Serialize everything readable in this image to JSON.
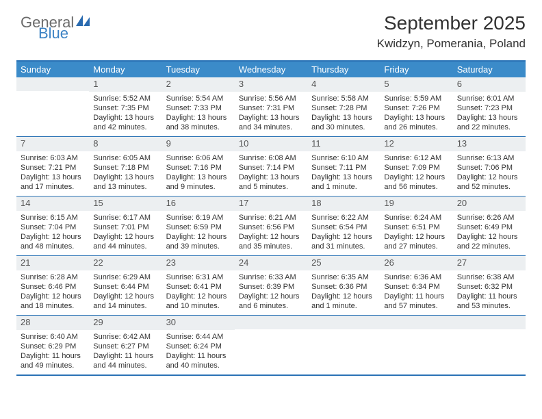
{
  "logo": {
    "word1": "General",
    "word2": "Blue",
    "icon_color": "#2a6bb0"
  },
  "title": "September 2025",
  "subtitle": "Kwidzyn, Pomerania, Poland",
  "colors": {
    "header_bg": "#3b8bc9",
    "header_text": "#ffffff",
    "rule": "#2a72b5",
    "daynum_bg": "#eceff1",
    "text": "#333333"
  },
  "day_labels": [
    "Sunday",
    "Monday",
    "Tuesday",
    "Wednesday",
    "Thursday",
    "Friday",
    "Saturday"
  ],
  "weeks": [
    [
      {
        "n": "",
        "sunrise": "",
        "sunset": "",
        "daylight": ""
      },
      {
        "n": "1",
        "sunrise": "Sunrise: 5:52 AM",
        "sunset": "Sunset: 7:35 PM",
        "daylight": "Daylight: 13 hours and 42 minutes."
      },
      {
        "n": "2",
        "sunrise": "Sunrise: 5:54 AM",
        "sunset": "Sunset: 7:33 PM",
        "daylight": "Daylight: 13 hours and 38 minutes."
      },
      {
        "n": "3",
        "sunrise": "Sunrise: 5:56 AM",
        "sunset": "Sunset: 7:31 PM",
        "daylight": "Daylight: 13 hours and 34 minutes."
      },
      {
        "n": "4",
        "sunrise": "Sunrise: 5:58 AM",
        "sunset": "Sunset: 7:28 PM",
        "daylight": "Daylight: 13 hours and 30 minutes."
      },
      {
        "n": "5",
        "sunrise": "Sunrise: 5:59 AM",
        "sunset": "Sunset: 7:26 PM",
        "daylight": "Daylight: 13 hours and 26 minutes."
      },
      {
        "n": "6",
        "sunrise": "Sunrise: 6:01 AM",
        "sunset": "Sunset: 7:23 PM",
        "daylight": "Daylight: 13 hours and 22 minutes."
      }
    ],
    [
      {
        "n": "7",
        "sunrise": "Sunrise: 6:03 AM",
        "sunset": "Sunset: 7:21 PM",
        "daylight": "Daylight: 13 hours and 17 minutes."
      },
      {
        "n": "8",
        "sunrise": "Sunrise: 6:05 AM",
        "sunset": "Sunset: 7:18 PM",
        "daylight": "Daylight: 13 hours and 13 minutes."
      },
      {
        "n": "9",
        "sunrise": "Sunrise: 6:06 AM",
        "sunset": "Sunset: 7:16 PM",
        "daylight": "Daylight: 13 hours and 9 minutes."
      },
      {
        "n": "10",
        "sunrise": "Sunrise: 6:08 AM",
        "sunset": "Sunset: 7:14 PM",
        "daylight": "Daylight: 13 hours and 5 minutes."
      },
      {
        "n": "11",
        "sunrise": "Sunrise: 6:10 AM",
        "sunset": "Sunset: 7:11 PM",
        "daylight": "Daylight: 13 hours and 1 minute."
      },
      {
        "n": "12",
        "sunrise": "Sunrise: 6:12 AM",
        "sunset": "Sunset: 7:09 PM",
        "daylight": "Daylight: 12 hours and 56 minutes."
      },
      {
        "n": "13",
        "sunrise": "Sunrise: 6:13 AM",
        "sunset": "Sunset: 7:06 PM",
        "daylight": "Daylight: 12 hours and 52 minutes."
      }
    ],
    [
      {
        "n": "14",
        "sunrise": "Sunrise: 6:15 AM",
        "sunset": "Sunset: 7:04 PM",
        "daylight": "Daylight: 12 hours and 48 minutes."
      },
      {
        "n": "15",
        "sunrise": "Sunrise: 6:17 AM",
        "sunset": "Sunset: 7:01 PM",
        "daylight": "Daylight: 12 hours and 44 minutes."
      },
      {
        "n": "16",
        "sunrise": "Sunrise: 6:19 AM",
        "sunset": "Sunset: 6:59 PM",
        "daylight": "Daylight: 12 hours and 39 minutes."
      },
      {
        "n": "17",
        "sunrise": "Sunrise: 6:21 AM",
        "sunset": "Sunset: 6:56 PM",
        "daylight": "Daylight: 12 hours and 35 minutes."
      },
      {
        "n": "18",
        "sunrise": "Sunrise: 6:22 AM",
        "sunset": "Sunset: 6:54 PM",
        "daylight": "Daylight: 12 hours and 31 minutes."
      },
      {
        "n": "19",
        "sunrise": "Sunrise: 6:24 AM",
        "sunset": "Sunset: 6:51 PM",
        "daylight": "Daylight: 12 hours and 27 minutes."
      },
      {
        "n": "20",
        "sunrise": "Sunrise: 6:26 AM",
        "sunset": "Sunset: 6:49 PM",
        "daylight": "Daylight: 12 hours and 22 minutes."
      }
    ],
    [
      {
        "n": "21",
        "sunrise": "Sunrise: 6:28 AM",
        "sunset": "Sunset: 6:46 PM",
        "daylight": "Daylight: 12 hours and 18 minutes."
      },
      {
        "n": "22",
        "sunrise": "Sunrise: 6:29 AM",
        "sunset": "Sunset: 6:44 PM",
        "daylight": "Daylight: 12 hours and 14 minutes."
      },
      {
        "n": "23",
        "sunrise": "Sunrise: 6:31 AM",
        "sunset": "Sunset: 6:41 PM",
        "daylight": "Daylight: 12 hours and 10 minutes."
      },
      {
        "n": "24",
        "sunrise": "Sunrise: 6:33 AM",
        "sunset": "Sunset: 6:39 PM",
        "daylight": "Daylight: 12 hours and 6 minutes."
      },
      {
        "n": "25",
        "sunrise": "Sunrise: 6:35 AM",
        "sunset": "Sunset: 6:36 PM",
        "daylight": "Daylight: 12 hours and 1 minute."
      },
      {
        "n": "26",
        "sunrise": "Sunrise: 6:36 AM",
        "sunset": "Sunset: 6:34 PM",
        "daylight": "Daylight: 11 hours and 57 minutes."
      },
      {
        "n": "27",
        "sunrise": "Sunrise: 6:38 AM",
        "sunset": "Sunset: 6:32 PM",
        "daylight": "Daylight: 11 hours and 53 minutes."
      }
    ],
    [
      {
        "n": "28",
        "sunrise": "Sunrise: 6:40 AM",
        "sunset": "Sunset: 6:29 PM",
        "daylight": "Daylight: 11 hours and 49 minutes."
      },
      {
        "n": "29",
        "sunrise": "Sunrise: 6:42 AM",
        "sunset": "Sunset: 6:27 PM",
        "daylight": "Daylight: 11 hours and 44 minutes."
      },
      {
        "n": "30",
        "sunrise": "Sunrise: 6:44 AM",
        "sunset": "Sunset: 6:24 PM",
        "daylight": "Daylight: 11 hours and 40 minutes."
      },
      {
        "n": "",
        "sunrise": "",
        "sunset": "",
        "daylight": ""
      },
      {
        "n": "",
        "sunrise": "",
        "sunset": "",
        "daylight": ""
      },
      {
        "n": "",
        "sunrise": "",
        "sunset": "",
        "daylight": ""
      },
      {
        "n": "",
        "sunrise": "",
        "sunset": "",
        "daylight": ""
      }
    ]
  ]
}
